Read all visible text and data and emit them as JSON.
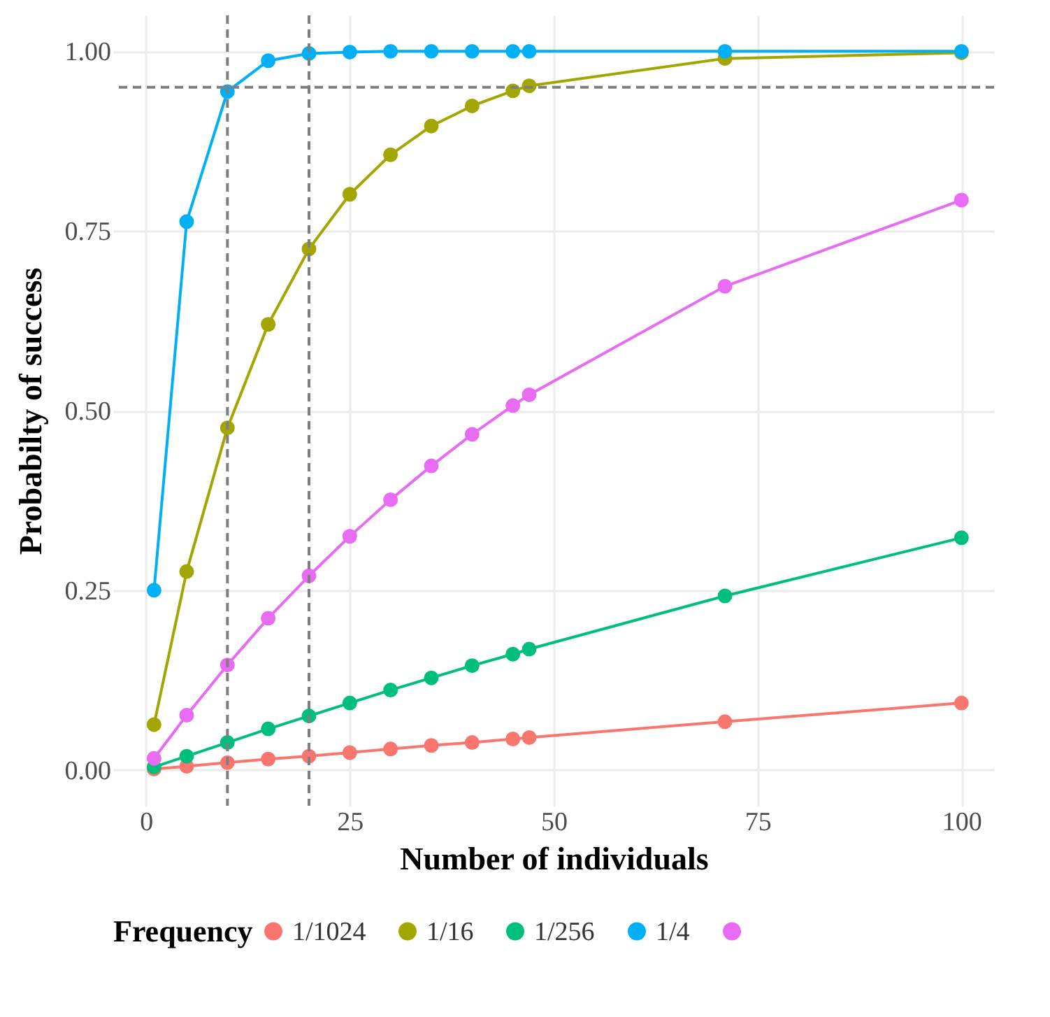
{
  "chart_data": {
    "type": "line",
    "xlabel": "Number of individuals",
    "ylabel": "Probabilty of success",
    "legend_title": "Frequency",
    "x": [
      1,
      5,
      10,
      15,
      20,
      25,
      30,
      35,
      40,
      45,
      47,
      71,
      100
    ],
    "series": [
      {
        "name": "1/1024",
        "color": "#f8766d",
        "values": [
          0.001,
          0.005,
          0.01,
          0.015,
          0.019,
          0.024,
          0.029,
          0.034,
          0.038,
          0.043,
          0.045,
          0.067,
          0.093
        ]
      },
      {
        "name": "1/16",
        "color": "#a3a500",
        "values": [
          0.063,
          0.276,
          0.476,
          0.62,
          0.725,
          0.801,
          0.856,
          0.896,
          0.924,
          0.945,
          0.952,
          0.99,
          0.998
        ]
      },
      {
        "name": "1/256",
        "color": "#00bf7d",
        "values": [
          0.004,
          0.019,
          0.038,
          0.057,
          0.075,
          0.093,
          0.111,
          0.128,
          0.145,
          0.161,
          0.168,
          0.242,
          0.323
        ]
      },
      {
        "name": "1/4",
        "color": "#00b0f6",
        "values": [
          0.25,
          0.763,
          0.944,
          0.987,
          0.997,
          0.999,
          1.0,
          1.0,
          1.0,
          1.0,
          1.0,
          1.0,
          1.0
        ]
      },
      {
        "name": null,
        "color": "#e76bf3",
        "values": [
          0.016,
          0.076,
          0.146,
          0.211,
          0.27,
          0.325,
          0.376,
          0.423,
          0.467,
          0.507,
          0.522,
          0.673,
          0.793
        ]
      }
    ],
    "xlim": [
      -4,
      104
    ],
    "xticks": [
      0,
      25,
      50,
      75,
      100
    ],
    "ylim": [
      -0.05,
      1.05
    ],
    "yticks": [
      {
        "value": 0,
        "label": "0.00"
      },
      {
        "value": 0.25,
        "label": "0.25"
      },
      {
        "value": 0.5,
        "label": "0.50"
      },
      {
        "value": 0.75,
        "label": "0.75"
      },
      {
        "value": 1,
        "label": "1.00"
      }
    ],
    "ref_lines": [
      {
        "axis": "x",
        "value": 10,
        "color": "#7f7f7f",
        "line_style": "dashed"
      },
      {
        "axis": "x",
        "value": 20,
        "color": "#7f7f7f",
        "line_style": "dashed"
      },
      {
        "axis": "y",
        "value": 0.95,
        "color": "#7f7f7f",
        "line_style": "dashed"
      }
    ],
    "grid": true,
    "legend": "bottom",
    "marker": "circle",
    "line_style": "solid"
  }
}
